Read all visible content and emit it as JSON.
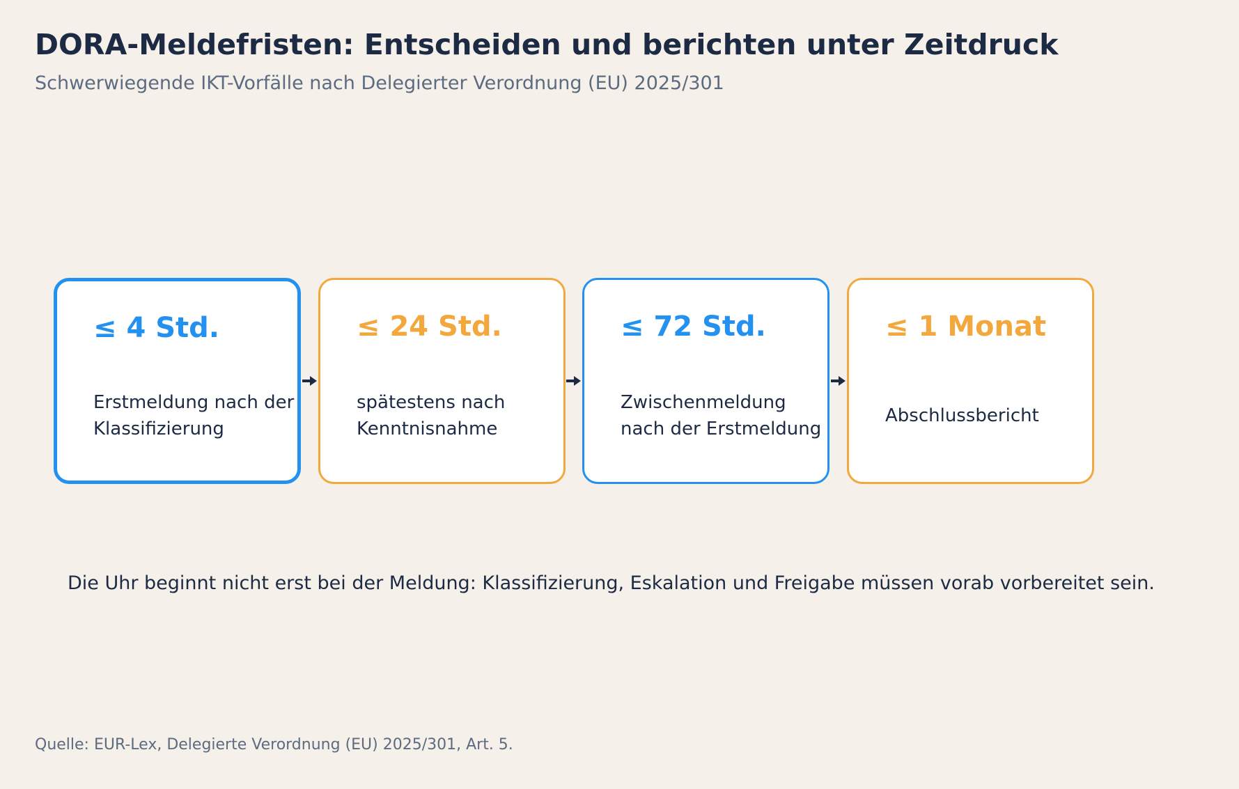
{
  "header": {
    "title": "DORA-Meldefristen: Entscheiden und berichten unter Zeitdruck",
    "subtitle": "Schwerwiegende IKT-Vorfälle nach Delegierter Verordnung (EU) 2025/301"
  },
  "colors": {
    "blue": "#2391f0",
    "orange": "#f2a83c",
    "text": "#1c2a44",
    "muted": "#5d6b81",
    "background": "#f5f0e9"
  },
  "steps": [
    {
      "value": "≤ 4 Std.",
      "description": "Erstmeldung nach der Klassifizierung",
      "color": "blue"
    },
    {
      "value": "≤ 24 Std.",
      "description": "spätestens nach Kenntnisnahme",
      "color": "orange"
    },
    {
      "value": "≤ 72 Std.",
      "description": "Zwischenmeldung nach der Erstmeldung",
      "color": "blue"
    },
    {
      "value": "≤ 1 Monat",
      "description": "Abschlussbericht",
      "color": "orange"
    }
  ],
  "note": "Die Uhr beginnt nicht erst bei der Meldung: Klassifizierung, Eskalation und Freigabe müssen vorab vorbereitet sein.",
  "source": "Quelle: EUR-Lex, Delegierte Verordnung (EU) 2025/301, Art. 5."
}
